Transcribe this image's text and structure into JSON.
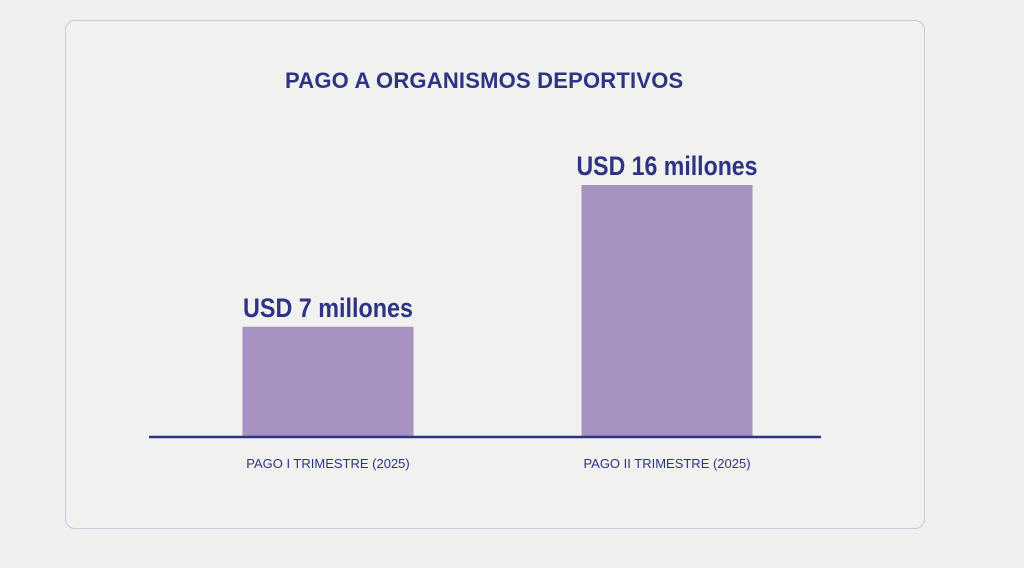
{
  "chart_data": {
    "type": "bar",
    "title": "PAGO A ORGANISMOS DEPORTIVOS",
    "categories": [
      "PAGO I TRIMESTRE (2025)",
      "PAGO II TRIMESTRE (2025)"
    ],
    "values": [
      7,
      16
    ],
    "data_labels": [
      "USD 7 millones",
      "USD 16 millones"
    ],
    "xlabel": "",
    "ylabel": "",
    "ylim": [
      0,
      16
    ],
    "grid": false,
    "bar_color": "#a791c0",
    "axis_color": "#2e3483",
    "text_color": "#2e3483"
  }
}
